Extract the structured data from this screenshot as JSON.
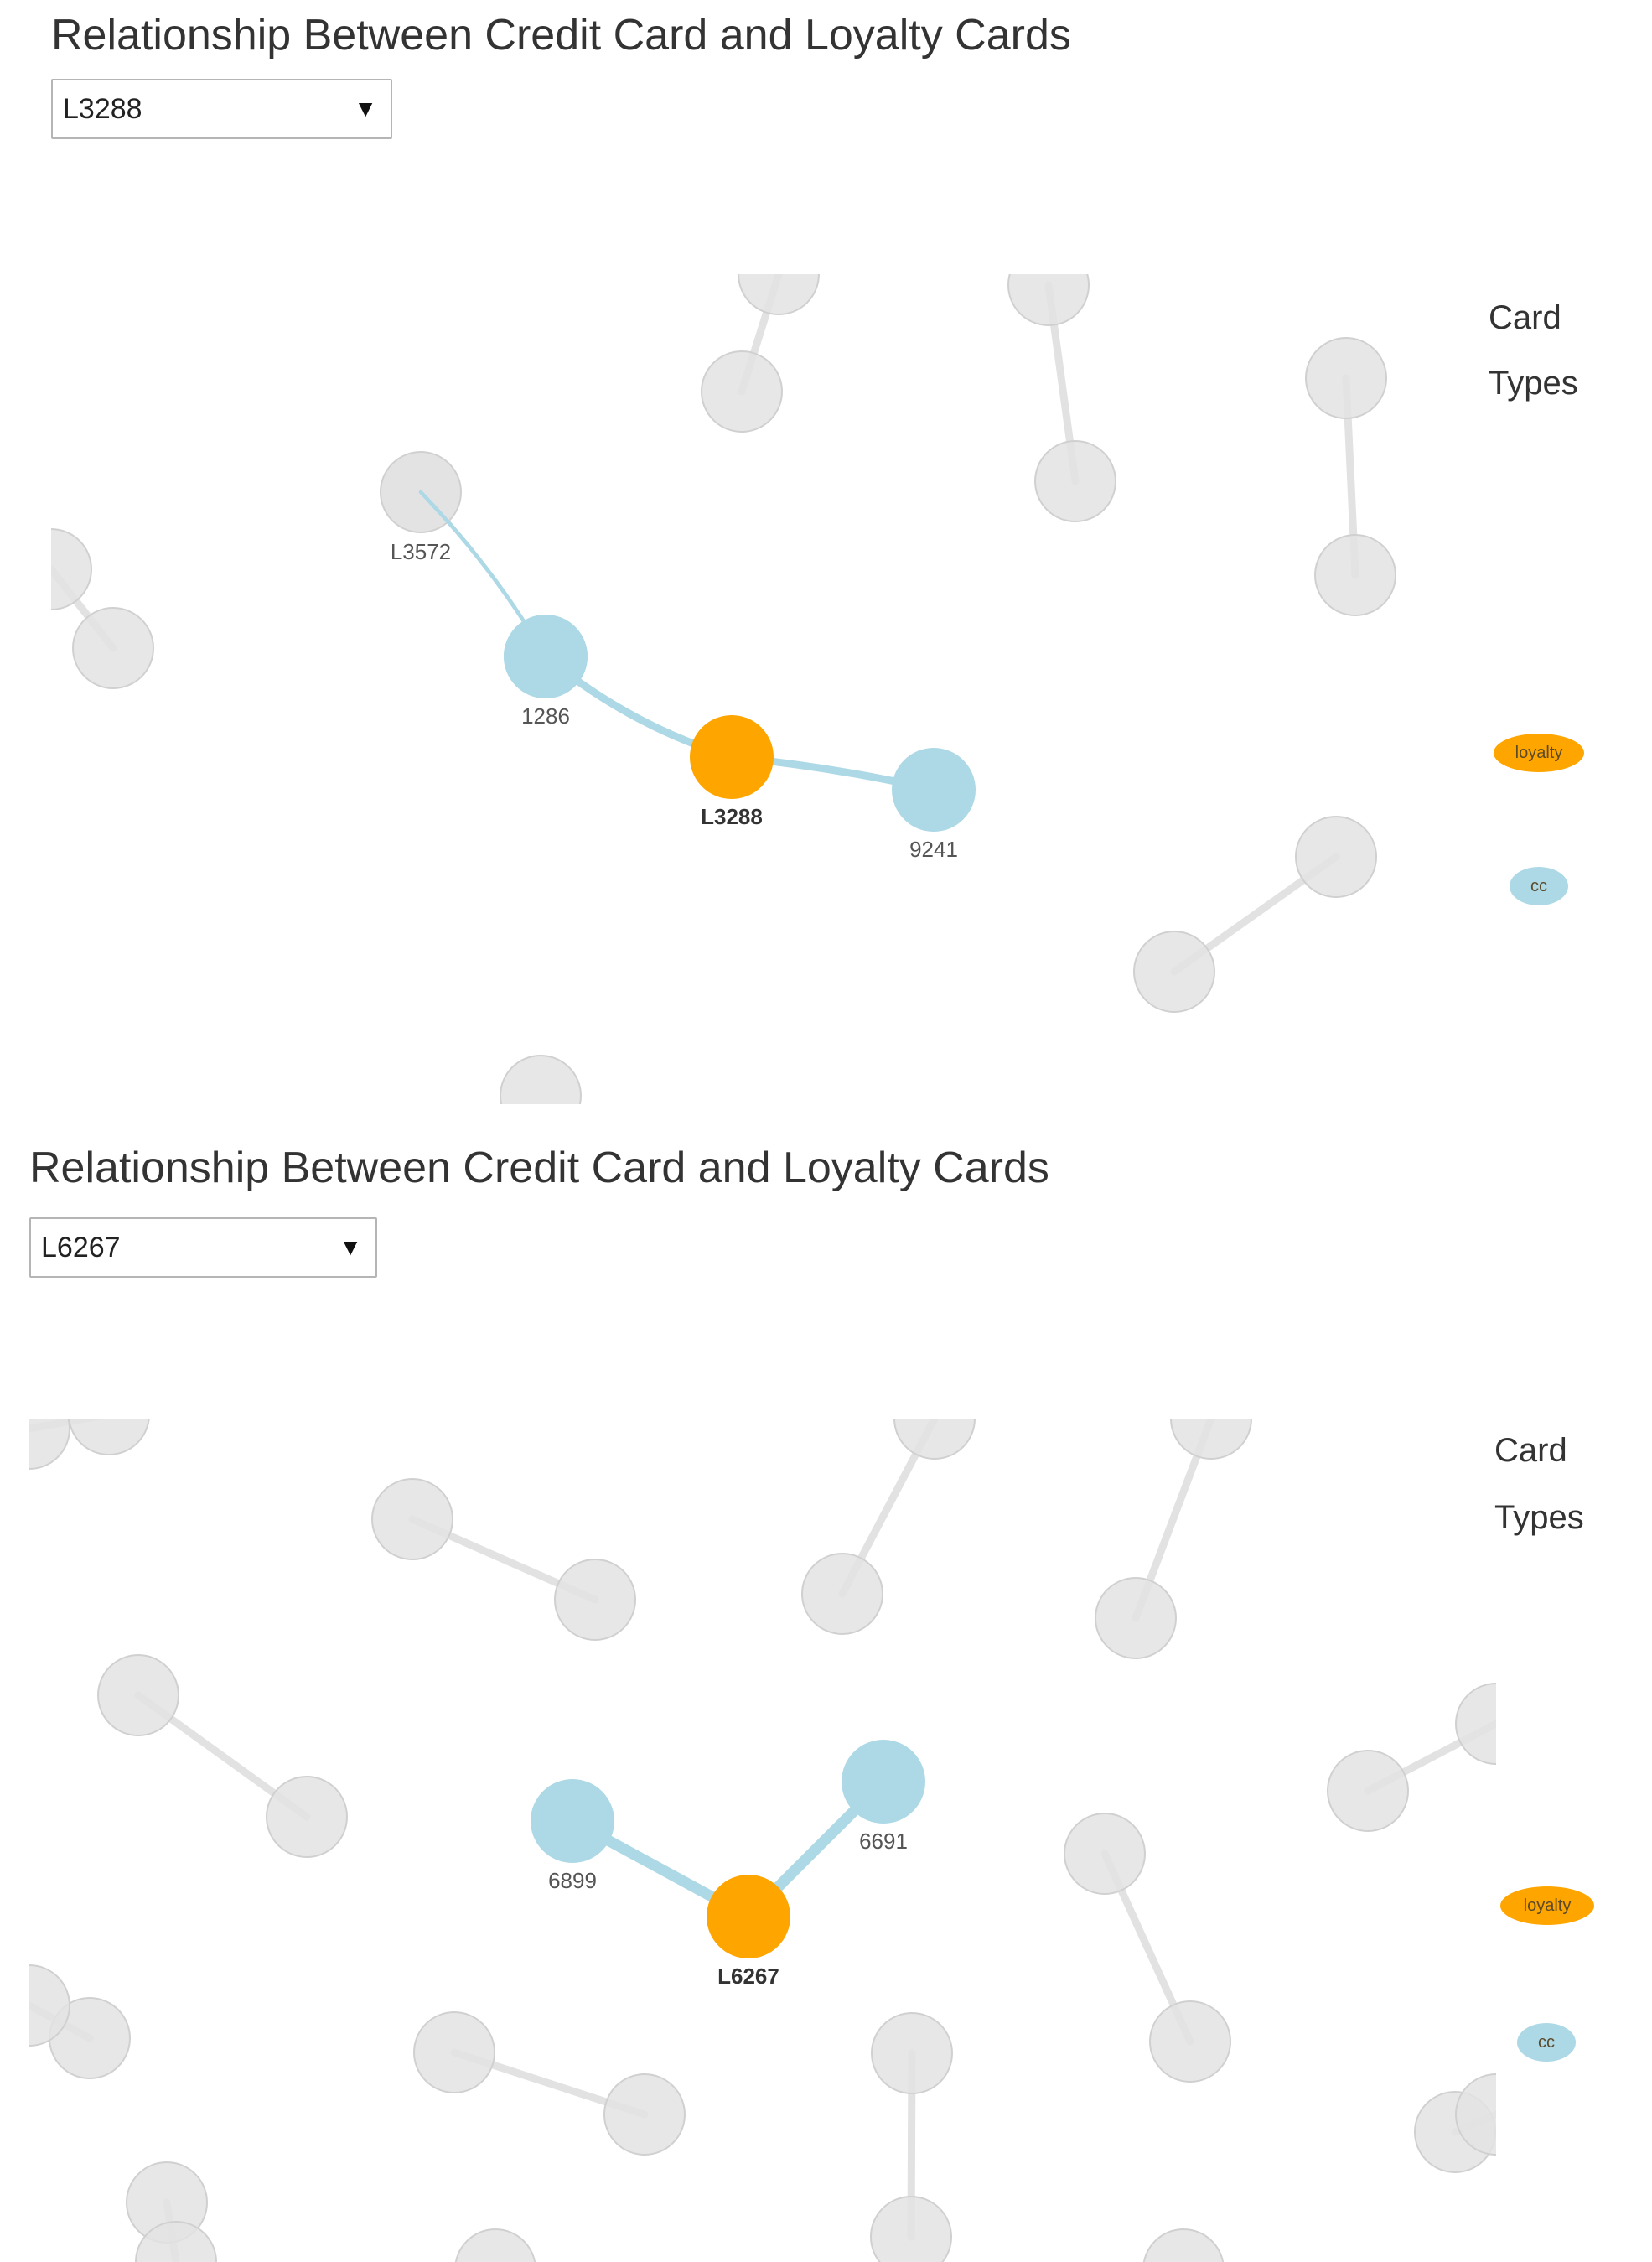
{
  "colors": {
    "loyalty": "#ffa500",
    "cc": "#add8e6",
    "faded_node": "#e3e3e3",
    "faded_stroke": "#d0d0d0",
    "faded_link": "#e2e2e2",
    "link": "#add8e6"
  },
  "panels": [
    {
      "title": "Relationship Between Credit Card and Loyalty Cards",
      "selected": "L3288",
      "legend": {
        "title": "Card Types",
        "items": [
          {
            "label": "loyalty",
            "kind": "loyalty"
          },
          {
            "label": "cc",
            "kind": "cc"
          }
        ]
      },
      "nodes": [
        {
          "id": "L3288",
          "type": "loyalty",
          "label": "L3288",
          "focus": true
        },
        {
          "id": "1286",
          "type": "cc",
          "label": "1286"
        },
        {
          "id": "9241",
          "type": "cc",
          "label": "9241"
        },
        {
          "id": "L3572",
          "type": "loyalty",
          "label": "L3572",
          "faded": true
        }
      ],
      "links": [
        {
          "source": "L3288",
          "target": "1286"
        },
        {
          "source": "L3288",
          "target": "9241"
        },
        {
          "source": "1286",
          "target": "L3572"
        }
      ]
    },
    {
      "title": "Relationship Between Credit Card and Loyalty Cards",
      "selected": "L6267",
      "legend": {
        "title": "Card Types",
        "items": [
          {
            "label": "loyalty",
            "kind": "loyalty"
          },
          {
            "label": "cc",
            "kind": "cc"
          }
        ]
      },
      "nodes": [
        {
          "id": "L6267",
          "type": "loyalty",
          "label": "L6267",
          "focus": true
        },
        {
          "id": "6899",
          "type": "cc",
          "label": "6899"
        },
        {
          "id": "6691",
          "type": "cc",
          "label": "6691"
        }
      ],
      "links": [
        {
          "source": "L6267",
          "target": "6899"
        },
        {
          "source": "L6267",
          "target": "6691"
        }
      ]
    }
  ]
}
